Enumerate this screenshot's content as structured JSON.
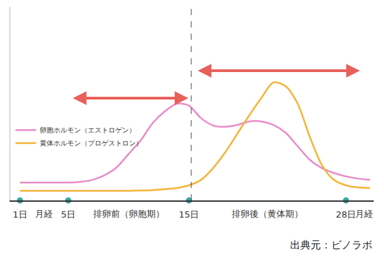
{
  "chart_data": {
    "type": "line",
    "x": [
      1,
      2,
      3,
      4,
      5,
      6,
      7,
      8,
      9,
      10,
      11,
      12,
      13,
      14,
      15,
      16,
      17,
      18,
      19,
      20,
      21,
      22,
      23,
      24,
      25,
      26,
      27,
      28,
      29,
      30
    ],
    "series": [
      {
        "name": "卵胞ホルモン（エストロゲン）",
        "color": "#e88cc7",
        "values": [
          9.2,
          9.2,
          9.2,
          9.2,
          9.2,
          9.6,
          10.6,
          13,
          17,
          24,
          31,
          40,
          46,
          50,
          49,
          42.5,
          38.7,
          38,
          39,
          40.8,
          40.8,
          39,
          35,
          28,
          21,
          16.7,
          14.2,
          12.4,
          11.3,
          10.6
        ]
      },
      {
        "name": "黄体ホルモン（プロゲストロン）",
        "color": "#f5b335",
        "values": [
          5,
          5,
          5,
          5,
          5,
          5,
          5,
          5,
          5,
          5,
          5.1,
          5.3,
          5.8,
          6.4,
          7.8,
          10.6,
          16.7,
          24.8,
          34.4,
          44,
          53,
          61,
          59,
          50,
          33,
          18.4,
          10.6,
          7.8,
          6.7,
          6.4
        ]
      }
    ],
    "xlim": [
      0.2,
      30.3
    ],
    "xticks": [
      {
        "value": 1,
        "label": "1日"
      },
      {
        "value": 5,
        "label": "5日"
      },
      {
        "value": 15,
        "label": "15日"
      },
      {
        "value": 28,
        "label": "28日"
      }
    ],
    "ylim": [
      0,
      100
    ],
    "tick_labels": "x",
    "grid": false,
    "legend": "left",
    "annotations": [
      {
        "text": "月経",
        "x": 3
      },
      {
        "text": "排卵前（卵胞期）",
        "x": 10
      },
      {
        "text": "排卵後（黄体期）",
        "x": 21.5
      },
      {
        "text": "月経",
        "x": 29.5
      }
    ],
    "source": "出典元：ビノラボ"
  }
}
